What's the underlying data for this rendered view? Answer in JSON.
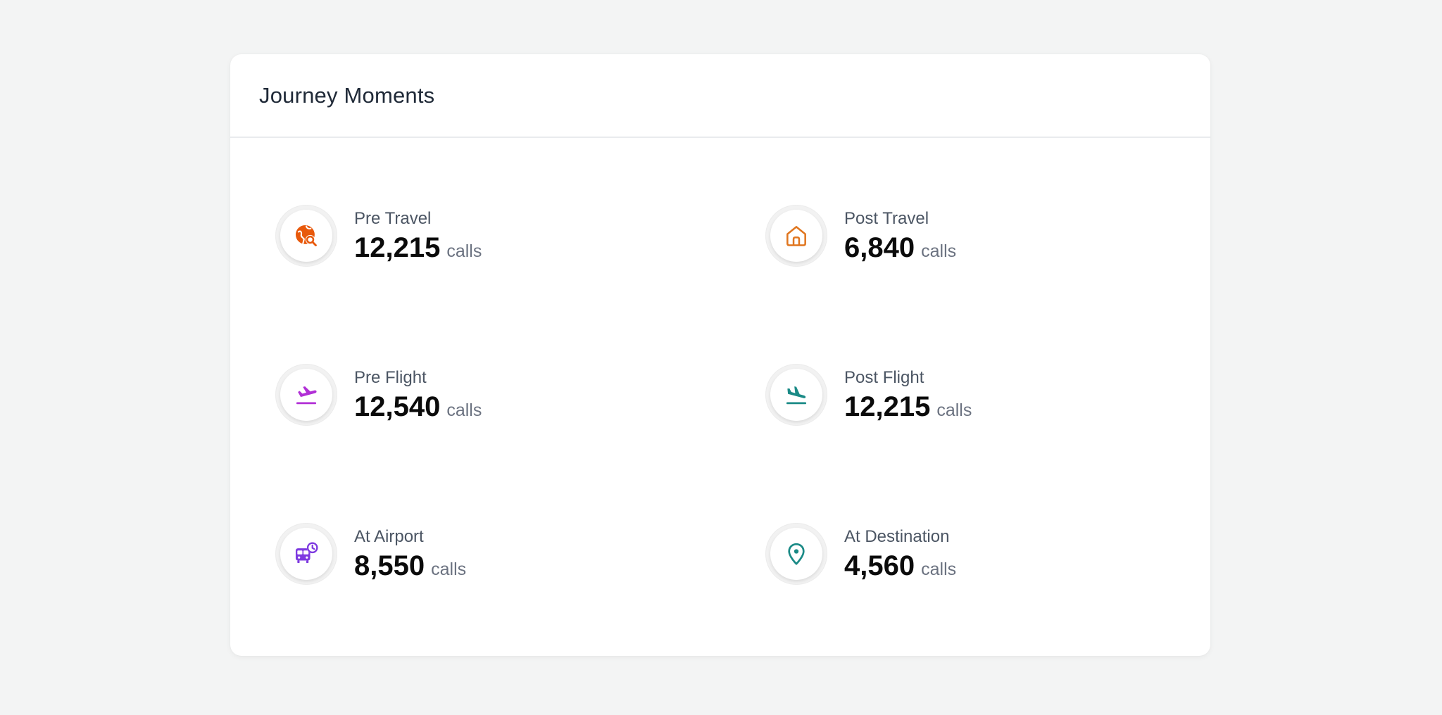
{
  "card": {
    "title": "Journey Moments"
  },
  "moments": [
    {
      "label": "Pre Travel",
      "value": "12,215",
      "unit": "calls",
      "icon": "globe-search-icon",
      "color": "#e8590c"
    },
    {
      "label": "Post Travel",
      "value": "6,840",
      "unit": "calls",
      "icon": "home-icon",
      "color": "#e0761f"
    },
    {
      "label": "Pre Flight",
      "value": "12,540",
      "unit": "calls",
      "icon": "plane-takeoff-icon",
      "color": "#b12fd6"
    },
    {
      "label": "Post Flight",
      "value": "12,215",
      "unit": "calls",
      "icon": "plane-landing-icon",
      "color": "#1a8a86"
    },
    {
      "label": "At Airport",
      "value": "8,550",
      "unit": "calls",
      "icon": "bus-clock-icon",
      "color": "#7e3ae0"
    },
    {
      "label": "At Destination",
      "value": "4,560",
      "unit": "calls",
      "icon": "map-pin-icon",
      "color": "#1a8a86"
    }
  ]
}
